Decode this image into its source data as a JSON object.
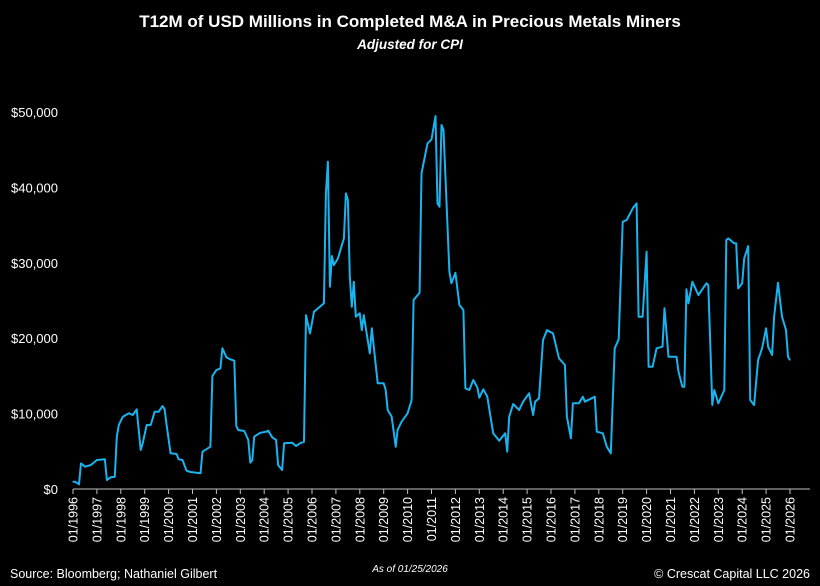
{
  "chart_data": {
    "type": "line",
    "title": "T12M of USD Millions in Completed M&A in Precious Metals Miners",
    "subtitle": "Adjusted for CPI",
    "xlabel": "",
    "ylabel": "",
    "ylim": [
      0,
      50000
    ],
    "xlim": [
      "01/1996",
      "01/2026"
    ],
    "grid": false,
    "legend": "none",
    "line_color": "#19b4f0",
    "background": "#000000",
    "y_ticks": [
      "$0",
      "$10,000",
      "$20,000",
      "$30,000",
      "$40,000",
      "$50,000"
    ],
    "y_tick_values": [
      0,
      10000,
      20000,
      30000,
      40000,
      50000
    ],
    "x_ticks": [
      "01/1996",
      "01/1997",
      "01/1998",
      "01/1999",
      "01/2000",
      "01/2001",
      "01/2002",
      "01/2003",
      "01/2004",
      "01/2005",
      "01/2006",
      "01/2007",
      "01/2008",
      "01/2009",
      "01/2010",
      "01/2011",
      "01/2012",
      "01/2013",
      "01/2014",
      "01/2015",
      "01/2016",
      "01/2017",
      "01/2018",
      "01/2019",
      "01/2020",
      "01/2021",
      "01/2022",
      "01/2023",
      "01/2024",
      "01/2025",
      "01/2026"
    ],
    "series": [
      {
        "x": [
          "01/1996",
          "02/1996",
          "04/1996",
          "05/1996",
          "07/1996",
          "10/1996",
          "01/1997",
          "05/1997",
          "06/1997",
          "08/1997",
          "10/1997",
          "11/1997",
          "12/1997",
          "02/1998",
          "05/1998",
          "07/1998",
          "09/1998",
          "11/1998",
          "12/1998",
          "02/1999",
          "04/1999",
          "06/1999",
          "08/1999",
          "10/1999",
          "11/1999",
          "12/1999",
          "02/2000",
          "05/2000",
          "06/2000",
          "08/2000",
          "10/2000",
          "12/2000",
          "05/2001",
          "06/2001",
          "10/2001",
          "11/2001",
          "01/2002",
          "03/2002",
          "04/2002",
          "06/2002",
          "08/2002",
          "10/2002",
          "11/2002",
          "12/2002",
          "03/2003",
          "05/2003",
          "06/2003",
          "07/2003",
          "08/2003",
          "11/2003",
          "02/2004",
          "03/2004",
          "05/2004",
          "07/2004",
          "08/2004",
          "10/2004",
          "11/2004",
          "03/2005",
          "05/2005",
          "07/2005",
          "09/2005",
          "10/2005",
          "12/2005",
          "02/2006",
          "07/2006",
          "08/2006",
          "09/2006",
          "10/2006",
          "11/2006",
          "12/2006",
          "02/2007",
          "05/2007",
          "06/2007",
          "07/2007",
          "08/2007",
          "09/2007",
          "10/2007",
          "11/2007",
          "01/2008",
          "02/2008",
          "03/2008",
          "06/2008",
          "07/2008",
          "10/2008",
          "01/2009",
          "02/2009",
          "03/2009",
          "05/2009",
          "07/2009",
          "08/2009",
          "10/2009",
          "01/2010",
          "03/2010",
          "04/2010",
          "07/2010",
          "08/2010",
          "11/2010",
          "01/2011",
          "03/2011",
          "04/2011",
          "05/2011",
          "06/2011",
          "07/2011",
          "10/2011",
          "11/2011",
          "01/2012",
          "03/2012",
          "05/2012",
          "06/2012",
          "08/2012",
          "10/2012",
          "12/2012",
          "01/2013",
          "03/2013",
          "05/2013",
          "08/2013",
          "11/2013",
          "02/2014",
          "03/2014",
          "04/2014",
          "06/2014",
          "09/2014",
          "11/2014",
          "02/2015",
          "04/2015",
          "05/2015",
          "07/2015",
          "09/2015",
          "11/2015",
          "02/2016",
          "05/2016",
          "08/2016",
          "09/2016",
          "11/2016",
          "12/2016",
          "03/2017",
          "05/2017",
          "06/2017",
          "11/2017",
          "12/2017",
          "03/2018",
          "05/2018",
          "07/2018",
          "09/2018",
          "11/2018",
          "01/2019",
          "03/2019",
          "06/2019",
          "08/2019",
          "09/2019",
          "11/2019",
          "01/2020",
          "02/2020",
          "04/2020",
          "06/2020",
          "09/2020",
          "10/2020",
          "12/2020",
          "04/2021",
          "05/2021",
          "07/2021",
          "08/2021",
          "09/2021",
          "10/2021",
          "12/2021",
          "03/2022",
          "07/2022",
          "08/2022",
          "10/2022",
          "11/2022",
          "01/2023",
          "04/2023",
          "05/2023",
          "06/2023",
          "09/2023",
          "10/2023",
          "11/2023",
          "01/2024",
          "02/2024",
          "04/2024",
          "05/2024",
          "07/2024",
          "09/2024",
          "11/2024",
          "01/2025",
          "02/2025",
          "04/2025",
          "05/2025",
          "07/2025",
          "09/2025",
          "11/2025",
          "12/2025",
          "01/2026"
        ],
        "values": [
          970,
          970,
          620,
          3400,
          2960,
          3180,
          3850,
          3940,
          1190,
          1550,
          1630,
          6930,
          8490,
          9590,
          10040,
          9810,
          10570,
          5170,
          6060,
          8490,
          8490,
          10250,
          10250,
          11000,
          10570,
          8490,
          4730,
          4640,
          3940,
          3850,
          2430,
          2250,
          2080,
          4950,
          5610,
          14980,
          15780,
          16000,
          18660,
          17460,
          17200,
          17020,
          8350,
          7820,
          7690,
          6500,
          3490,
          3850,
          6930,
          7460,
          7600,
          7730,
          6860,
          6500,
          3180,
          2520,
          6060,
          6140,
          5700,
          6060,
          6270,
          23070,
          20640,
          23510,
          24620,
          39210,
          43400,
          26830,
          30900,
          29700,
          30590,
          33240,
          39210,
          38320,
          28150,
          24170,
          27490,
          22850,
          23300,
          21080,
          23070,
          17990,
          21310,
          14020,
          14020,
          13130,
          10480,
          9590,
          5610,
          7820,
          8920,
          10040,
          11800,
          25060,
          26030,
          41860,
          45840,
          46370,
          49460,
          37880,
          37430,
          48270,
          47600,
          28820,
          27280,
          28680,
          24400,
          23740,
          13350,
          13130,
          14450,
          13490,
          12110,
          13220,
          12240,
          7390,
          6400,
          7390,
          4950,
          9590,
          11270,
          10480,
          11580,
          12690,
          9810,
          11580,
          12020,
          19760,
          21080,
          20640,
          17330,
          16440,
          9590,
          6720,
          11360,
          11360,
          12240,
          11580,
          12240,
          7600,
          7390,
          5610,
          4730,
          18660,
          19850,
          35440,
          35670,
          37220,
          37880,
          22850,
          22850,
          31460,
          16220,
          16220,
          18660,
          18870,
          23960,
          17540,
          17540,
          15550,
          13570,
          13570,
          26480,
          24620,
          27490,
          25720,
          27280,
          27050,
          11140,
          13130,
          11360,
          13130,
          33020,
          33240,
          32580,
          32580,
          26610,
          27280,
          30590,
          32220,
          11800,
          11140,
          17110,
          18660,
          21310,
          18870,
          17770,
          22850,
          27360,
          22850,
          21080,
          17540,
          17110
        ]
      }
    ]
  },
  "footer": {
    "source": "Source: Bloomberg; Nathaniel Gilbert",
    "as_of": "As of 01/25/2026",
    "copyright": "© Crescat Capital LLC 2026"
  }
}
